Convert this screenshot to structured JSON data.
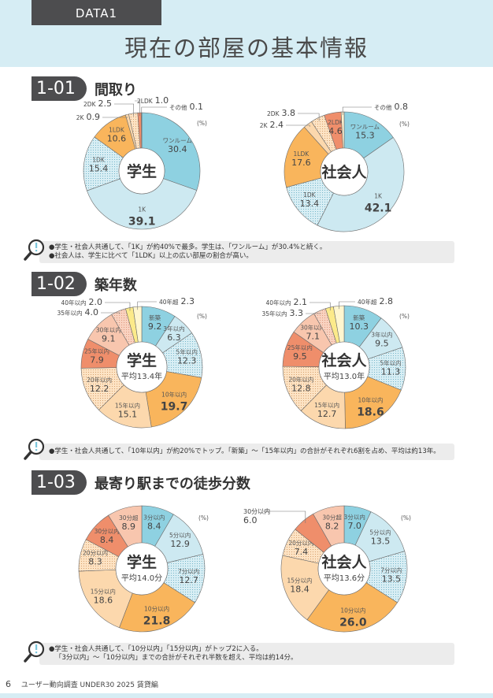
{
  "header": {
    "tag": "DATA1",
    "title": "現在の部屋の基本情報"
  },
  "unit": "(%)",
  "sections": [
    {
      "num": "1-01",
      "title": "間取り",
      "notes": [
        "●学生・社会人共通して、「1K」が約40%で最多。学生は、「ワンルーム」が30.4%と続く。",
        "●社会人は、学生に比べて「1LDK」以上の広い部屋の割合が高い。"
      ]
    },
    {
      "num": "1-02",
      "title": "築年数",
      "notes": [
        "●学生・社会人共通して、「10年以内」が約20%でトップ。「新築」～「15年以内」の合計がそれぞれ6割を占め、平均は約13年。"
      ]
    },
    {
      "num": "1-03",
      "title": "最寄り駅までの徒歩分数",
      "notes": [
        "●学生・社会人共通して、「10分以内」「15分以内」がトップ2に入る。",
        "「3分以内」～「10分以内」までの合計がそれぞれ半数を超え、平均は約14分。"
      ]
    }
  ],
  "footer": {
    "page": "6",
    "text": "ユーザー動向調査  UNDER30  2025 賃貸編"
  },
  "chart_data": [
    {
      "type": "pie",
      "section": "1-01",
      "center": "学生",
      "average": null,
      "unit": "%",
      "slices": [
        {
          "label": "ワンルーム",
          "value": 30.4,
          "fill": "#8ed1e1"
        },
        {
          "label": "1K",
          "value": 39.1,
          "fill": "#cde9f1"
        },
        {
          "label": "1DK",
          "value": 15.4,
          "fill": "#d8eef4",
          "dotted": true
        },
        {
          "label": "1LDK",
          "value": 10.6,
          "fill": "#f9b55c"
        },
        {
          "label": "2K",
          "value": 0.9,
          "fill": "#fcd8ad"
        },
        {
          "label": "2DK",
          "value": 2.5,
          "fill": "#fde3c4",
          "dotted": true
        },
        {
          "label": "2LDK",
          "value": 1.0,
          "fill": "#ef8e6b"
        },
        {
          "label": "その他",
          "value": 0.1,
          "fill": "#fff3d0"
        }
      ]
    },
    {
      "type": "pie",
      "section": "1-01",
      "center": "社会人",
      "average": null,
      "unit": "%",
      "slices": [
        {
          "label": "ワンルーム",
          "value": 15.3,
          "fill": "#8ed1e1"
        },
        {
          "label": "1K",
          "value": 42.1,
          "fill": "#cde9f1"
        },
        {
          "label": "1DK",
          "value": 13.4,
          "fill": "#d8eef4",
          "dotted": true
        },
        {
          "label": "1LDK",
          "value": 17.6,
          "fill": "#f9b55c"
        },
        {
          "label": "2K",
          "value": 2.4,
          "fill": "#fcd8ad"
        },
        {
          "label": "2DK",
          "value": 3.8,
          "fill": "#fde3c4",
          "dotted": true
        },
        {
          "label": "2LDK",
          "value": 4.6,
          "fill": "#ef8e6b"
        },
        {
          "label": "その他",
          "value": 0.8,
          "fill": "#fff3d0"
        }
      ]
    },
    {
      "type": "pie",
      "section": "1-02",
      "center": "学生",
      "average": "平均13.4年",
      "unit": "%",
      "slices": [
        {
          "label": "新築",
          "value": 9.2,
          "fill": "#8ed1e1"
        },
        {
          "label": "3年以内",
          "value": 6.3,
          "fill": "#cde9f1"
        },
        {
          "label": "5年以内",
          "value": 12.3,
          "fill": "#d8eef4",
          "dotted": true
        },
        {
          "label": "10年以内",
          "value": 19.7,
          "fill": "#f9b55c"
        },
        {
          "label": "15年以内",
          "value": 15.1,
          "fill": "#fcd8ad"
        },
        {
          "label": "20年以内",
          "value": 12.2,
          "fill": "#fde3c4",
          "dotted": true
        },
        {
          "label": "25年以内",
          "value": 7.9,
          "fill": "#ef8e6b"
        },
        {
          "label": "30年以内",
          "value": 9.1,
          "fill": "#f8c6ae"
        },
        {
          "label": "35年以内",
          "value": 4.0,
          "fill": "#f9d2c0",
          "dotted": true
        },
        {
          "label": "40年以内",
          "value": 2.0,
          "fill": "#fcea8a"
        },
        {
          "label": "40年超",
          "value": 2.3,
          "fill": "#fff6cf"
        }
      ]
    },
    {
      "type": "pie",
      "section": "1-02",
      "center": "社会人",
      "average": "平均13.0年",
      "unit": "%",
      "slices": [
        {
          "label": "新築",
          "value": 10.3,
          "fill": "#8ed1e1"
        },
        {
          "label": "3年以内",
          "value": 9.5,
          "fill": "#cde9f1"
        },
        {
          "label": "5年以内",
          "value": 11.3,
          "fill": "#d8eef4",
          "dotted": true
        },
        {
          "label": "10年以内",
          "value": 18.6,
          "fill": "#f9b55c"
        },
        {
          "label": "15年以内",
          "value": 12.7,
          "fill": "#fcd8ad"
        },
        {
          "label": "20年以内",
          "value": 12.8,
          "fill": "#fde3c4",
          "dotted": true
        },
        {
          "label": "25年以内",
          "value": 9.5,
          "fill": "#ef8e6b"
        },
        {
          "label": "30年以内",
          "value": 7.1,
          "fill": "#f8c6ae"
        },
        {
          "label": "35年以内",
          "value": 3.3,
          "fill": "#f9d2c0",
          "dotted": true
        },
        {
          "label": "40年以内",
          "value": 2.1,
          "fill": "#fcea8a"
        },
        {
          "label": "40年超",
          "value": 2.8,
          "fill": "#fff6cf"
        }
      ]
    },
    {
      "type": "pie",
      "section": "1-03",
      "center": "学生",
      "average": "平均14.0分",
      "unit": "%",
      "slices": [
        {
          "label": "3分以内",
          "value": 8.4,
          "fill": "#8ed1e1"
        },
        {
          "label": "5分以内",
          "value": 12.9,
          "fill": "#cde9f1"
        },
        {
          "label": "7分以内",
          "value": 12.7,
          "fill": "#d8eef4",
          "dotted": true
        },
        {
          "label": "10分以内",
          "value": 21.8,
          "fill": "#f9b55c"
        },
        {
          "label": "15分以内",
          "value": 18.6,
          "fill": "#fcd8ad"
        },
        {
          "label": "20分以内",
          "value": 8.3,
          "fill": "#fde3c4",
          "dotted": true
        },
        {
          "label": "30分以内",
          "value": 8.4,
          "fill": "#ef8e6b"
        },
        {
          "label": "30分超",
          "value": 8.9,
          "fill": "#f8c6ae"
        }
      ]
    },
    {
      "type": "pie",
      "section": "1-03",
      "center": "社会人",
      "average": "平均13.6分",
      "unit": "%",
      "slices": [
        {
          "label": "3分以内",
          "value": 7.0,
          "fill": "#8ed1e1"
        },
        {
          "label": "5分以内",
          "value": 13.5,
          "fill": "#cde9f1"
        },
        {
          "label": "7分以内",
          "value": 13.5,
          "fill": "#d8eef4",
          "dotted": true
        },
        {
          "label": "10分以内",
          "value": 26.0,
          "fill": "#f9b55c"
        },
        {
          "label": "15分以内",
          "value": 18.4,
          "fill": "#fcd8ad"
        },
        {
          "label": "20分以内",
          "value": 7.4,
          "fill": "#fde3c4",
          "dotted": true
        },
        {
          "label": "30分以内",
          "value": 6.0,
          "fill": "#ef8e6b"
        },
        {
          "label": "30分超",
          "value": 8.2,
          "fill": "#f8c6ae"
        }
      ]
    }
  ]
}
